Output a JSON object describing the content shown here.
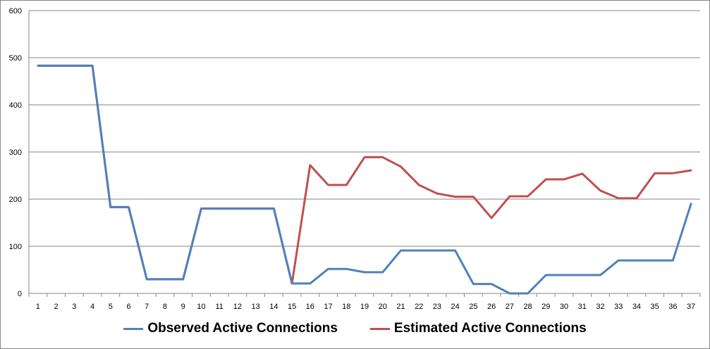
{
  "chart_data": {
    "type": "line",
    "title": "",
    "xlabel": "",
    "ylabel": "",
    "ylim": [
      0,
      600
    ],
    "yticks": [
      0,
      100,
      200,
      300,
      400,
      500,
      600
    ],
    "grid": "horizontal",
    "legend_position": "bottom",
    "categories": [
      "1",
      "2",
      "3",
      "4",
      "5",
      "6",
      "7",
      "8",
      "9",
      "10",
      "11",
      "12",
      "13",
      "14",
      "15",
      "16",
      "17",
      "18",
      "19",
      "20",
      "21",
      "22",
      "23",
      "24",
      "25",
      "26",
      "27",
      "28",
      "29",
      "30",
      "31",
      "32",
      "33",
      "34",
      "35",
      "36",
      "37"
    ],
    "series": [
      {
        "name": "Observed Active Connections",
        "color": "#4F81BD",
        "values": [
          483,
          483,
          483,
          483,
          183,
          183,
          30,
          30,
          30,
          180,
          180,
          180,
          180,
          180,
          21,
          21,
          52,
          52,
          45,
          45,
          91,
          91,
          91,
          91,
          20,
          20,
          0,
          0,
          39,
          39,
          39,
          39,
          70,
          70,
          70,
          70,
          190
        ]
      },
      {
        "name": "Estimated Active Connections",
        "color": "#C0504D",
        "values": [
          483,
          483,
          483,
          483,
          183,
          183,
          30,
          30,
          30,
          180,
          180,
          180,
          180,
          180,
          21,
          272,
          230,
          230,
          289,
          289,
          269,
          230,
          212,
          205,
          205,
          160,
          206,
          206,
          242,
          242,
          254,
          218,
          202,
          202,
          255,
          255,
          261
        ]
      }
    ]
  }
}
